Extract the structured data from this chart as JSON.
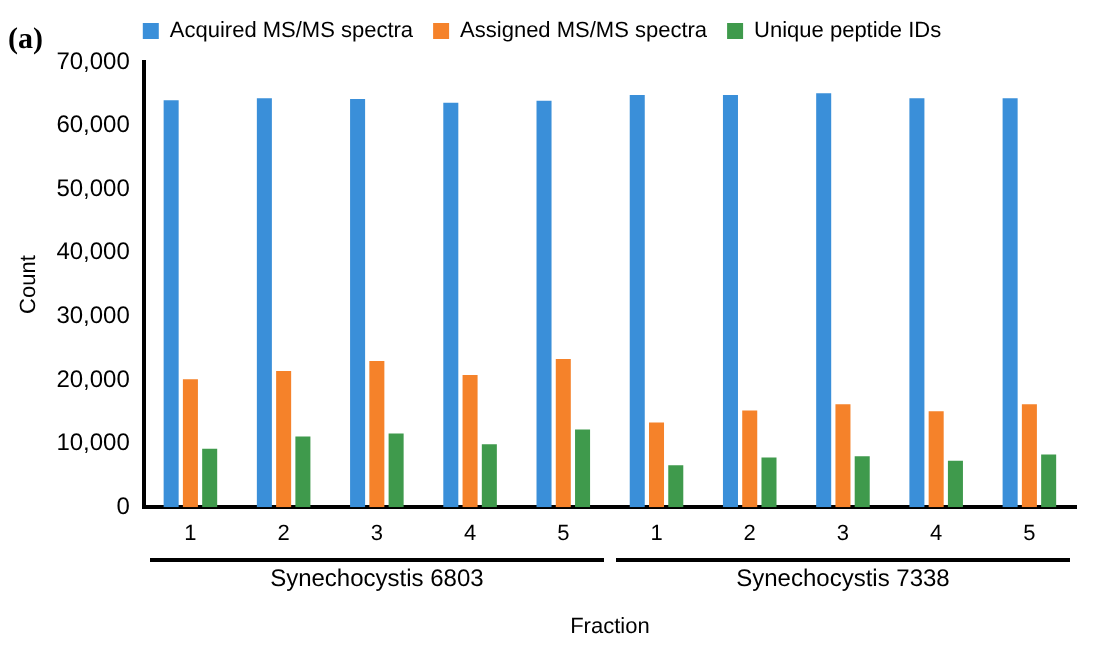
{
  "chart_data": {
    "type": "bar",
    "categories": [
      "1",
      "2",
      "3",
      "4",
      "5",
      "1",
      "2",
      "3",
      "4",
      "5"
    ],
    "series": [
      {
        "name": "Acquired MS/MS spectra",
        "color": "#3a8fd9",
        "values": [
          64000,
          64300,
          64200,
          63600,
          63900,
          64800,
          64800,
          65100,
          64300,
          64300
        ]
      },
      {
        "name": "Assigned MS/MS spectra",
        "color": "#f5822a",
        "values": [
          20100,
          21400,
          23000,
          20800,
          23300,
          13300,
          15200,
          16200,
          15100,
          16200
        ]
      },
      {
        "name": "Unique peptide IDs",
        "color": "#3f9a4c",
        "values": [
          9200,
          11100,
          11600,
          9900,
          12200,
          6600,
          7800,
          8000,
          7300,
          8300
        ]
      }
    ],
    "xlabel": "Fraction",
    "ylabel": "Count",
    "ylim": [
      0,
      70000
    ],
    "yticks": [
      0,
      {
        "value": 10000,
        "label": "10,000"
      },
      {
        "value": 20000,
        "label": "20,000"
      },
      {
        "value": 30000,
        "label": "30,000"
      },
      {
        "value": 40000,
        "label": "40,000"
      },
      {
        "value": 50000,
        "label": "50,000"
      },
      {
        "value": 60000,
        "label": "60,000"
      },
      {
        "value": 70000,
        "label": "70,000"
      }
    ],
    "annotations": [
      "(a)",
      "Synechocystis 6803",
      "Synechocystis 7338"
    ],
    "grid": false,
    "legend": "top"
  }
}
